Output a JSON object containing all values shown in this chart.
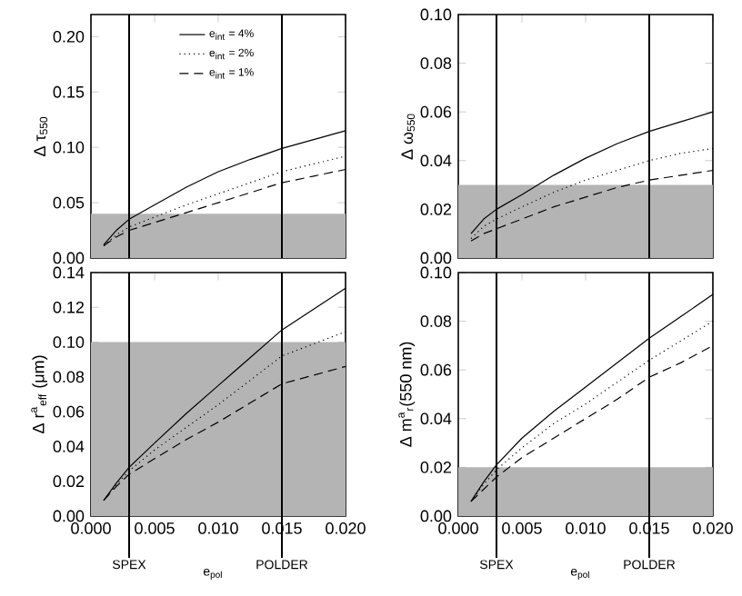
{
  "chart_data": [
    {
      "type": "line",
      "ylabel": "Δ τ$_{550}$",
      "xlim": [
        0,
        0.02
      ],
      "ylim": [
        0,
        0.22
      ],
      "tick_labels": "y",
      "legend": "top",
      "xticks": [
        {
          "value": 0,
          "label": null
        },
        {
          "value": 0.005,
          "label": null
        },
        {
          "value": 0.01,
          "label": null
        },
        {
          "value": 0.015,
          "label": null
        },
        {
          "value": 0.02,
          "label": null
        }
      ],
      "yticks": [
        {
          "value": 0,
          "label": "0.00"
        },
        {
          "value": 0.05,
          "label": "0.05"
        },
        {
          "value": 0.1,
          "label": "0.10"
        },
        {
          "value": 0.15,
          "label": "0.15"
        },
        {
          "value": 0.2,
          "label": "0.20"
        }
      ],
      "x": [
        0.001,
        0.002,
        0.003,
        0.005,
        0.0075,
        0.01,
        0.0125,
        0.015,
        0.0175,
        0.02
      ],
      "series": [
        {
          "name": "e$_{int}$ = 4%",
          "color": "#000000",
          "line_style": "solid",
          "values": [
            0.012,
            0.025,
            0.035,
            0.048,
            0.064,
            0.078,
            0.089,
            0.099,
            0.107,
            0.115
          ]
        },
        {
          "name": "e$_{int}$ = 2%",
          "color": "#000000",
          "line_style": "dotted",
          "values": [
            0.011,
            0.021,
            0.028,
            0.037,
            0.048,
            0.058,
            0.068,
            0.078,
            0.085,
            0.092
          ]
        },
        {
          "name": "e$_{int}$ = 1%",
          "color": "#000000",
          "line_style": "dashed",
          "values": [
            0.011,
            0.019,
            0.025,
            0.032,
            0.041,
            0.05,
            0.059,
            0.068,
            0.074,
            0.08
          ]
        }
      ],
      "ref_lines": [
        {
          "axis": "x",
          "value": 0.003,
          "color": "#000000"
        },
        {
          "axis": "x",
          "value": 0.015,
          "color": "#000000"
        }
      ],
      "bands": [
        {
          "axis": "y",
          "from": 0,
          "to": 0.04,
          "color": "#b4b4b4"
        }
      ]
    },
    {
      "type": "line",
      "ylabel": "Δ ω$_{550}$",
      "xlim": [
        0,
        0.02
      ],
      "ylim": [
        0,
        0.1
      ],
      "tick_labels": "y",
      "xticks": [
        {
          "value": 0,
          "label": null
        },
        {
          "value": 0.005,
          "label": null
        },
        {
          "value": 0.01,
          "label": null
        },
        {
          "value": 0.015,
          "label": null
        },
        {
          "value": 0.02,
          "label": null
        }
      ],
      "yticks": [
        {
          "value": 0,
          "label": "0.00"
        },
        {
          "value": 0.02,
          "label": "0.02"
        },
        {
          "value": 0.04,
          "label": "0.04"
        },
        {
          "value": 0.06,
          "label": "0.06"
        },
        {
          "value": 0.08,
          "label": "0.08"
        },
        {
          "value": 0.1,
          "label": "0.10"
        }
      ],
      "x": [
        0.001,
        0.002,
        0.003,
        0.005,
        0.0075,
        0.01,
        0.0125,
        0.015,
        0.0175,
        0.02
      ],
      "series": [
        {
          "color": "#000000",
          "line_style": "solid",
          "values": [
            0.01,
            0.016,
            0.02,
            0.026,
            0.034,
            0.041,
            0.047,
            0.052,
            0.056,
            0.06
          ]
        },
        {
          "color": "#000000",
          "line_style": "dotted",
          "values": [
            0.008,
            0.013,
            0.016,
            0.021,
            0.027,
            0.032,
            0.036,
            0.04,
            0.043,
            0.045
          ]
        },
        {
          "color": "#000000",
          "line_style": "dashed",
          "values": [
            0.007,
            0.01,
            0.012,
            0.016,
            0.021,
            0.025,
            0.029,
            0.032,
            0.034,
            0.036
          ]
        }
      ],
      "ref_lines": [
        {
          "axis": "x",
          "value": 0.003,
          "color": "#000000"
        },
        {
          "axis": "x",
          "value": 0.015,
          "color": "#000000"
        }
      ],
      "bands": [
        {
          "axis": "y",
          "from": 0,
          "to": 0.03,
          "color": "#b4b4b4"
        }
      ]
    },
    {
      "type": "line",
      "ylabel": "Δ r$^{a}$$_{eff}$ (μm)",
      "xlabel": "e$_{pol}$",
      "xlim": [
        0,
        0.02
      ],
      "ylim": [
        0,
        0.14
      ],
      "xticks": [
        {
          "value": 0,
          "label": "0.000"
        },
        {
          "value": 0.005,
          "label": "0.005"
        },
        {
          "value": 0.01,
          "label": "0.010"
        },
        {
          "value": 0.015,
          "label": "0.015"
        },
        {
          "value": 0.02,
          "label": "0.020"
        }
      ],
      "yticks": [
        {
          "value": 0,
          "label": "0.00"
        },
        {
          "value": 0.02,
          "label": "0.02"
        },
        {
          "value": 0.04,
          "label": "0.04"
        },
        {
          "value": 0.06,
          "label": "0.06"
        },
        {
          "value": 0.08,
          "label": "0.08"
        },
        {
          "value": 0.1,
          "label": "0.10"
        },
        {
          "value": 0.12,
          "label": "0.12"
        },
        {
          "value": 0.14,
          "label": "0.14"
        }
      ],
      "x": [
        0.001,
        0.002,
        0.003,
        0.005,
        0.0075,
        0.01,
        0.0125,
        0.015,
        0.0175,
        0.02
      ],
      "series": [
        {
          "color": "#000000",
          "line_style": "solid",
          "values": [
            0.009,
            0.019,
            0.028,
            0.042,
            0.059,
            0.075,
            0.091,
            0.107,
            0.119,
            0.131
          ]
        },
        {
          "color": "#000000",
          "line_style": "dotted",
          "values": [
            0.009,
            0.018,
            0.026,
            0.038,
            0.051,
            0.064,
            0.078,
            0.092,
            0.099,
            0.106
          ]
        },
        {
          "color": "#000000",
          "line_style": "dashed",
          "values": [
            0.009,
            0.017,
            0.024,
            0.033,
            0.044,
            0.054,
            0.065,
            0.076,
            0.081,
            0.086
          ]
        }
      ],
      "ref_lines": [
        {
          "axis": "x",
          "value": 0.003,
          "label": "SPEX",
          "color": "#000000"
        },
        {
          "axis": "x",
          "value": 0.015,
          "label": "POLDER",
          "color": "#000000"
        }
      ],
      "bands": [
        {
          "axis": "y",
          "from": 0,
          "to": 0.1,
          "color": "#b4b4b4"
        }
      ]
    },
    {
      "type": "line",
      "ylabel": "Δ m$^{a}$$_{r}$(550 nm)",
      "xlabel": "e$_{pol}$",
      "xlim": [
        0,
        0.02
      ],
      "ylim": [
        0,
        0.1
      ],
      "xticks": [
        {
          "value": 0,
          "label": "0.000"
        },
        {
          "value": 0.005,
          "label": "0.005"
        },
        {
          "value": 0.01,
          "label": "0.010"
        },
        {
          "value": 0.015,
          "label": "0.015"
        },
        {
          "value": 0.02,
          "label": "0.020"
        }
      ],
      "yticks": [
        {
          "value": 0,
          "label": "0.00"
        },
        {
          "value": 0.02,
          "label": "0.02"
        },
        {
          "value": 0.04,
          "label": "0.04"
        },
        {
          "value": 0.06,
          "label": "0.06"
        },
        {
          "value": 0.08,
          "label": "0.08"
        },
        {
          "value": 0.1,
          "label": "0.10"
        }
      ],
      "x": [
        0.001,
        0.002,
        0.003,
        0.005,
        0.0075,
        0.01,
        0.0125,
        0.015,
        0.0175,
        0.02
      ],
      "series": [
        {
          "color": "#000000",
          "line_style": "solid",
          "values": [
            0.006,
            0.014,
            0.021,
            0.032,
            0.043,
            0.053,
            0.063,
            0.073,
            0.082,
            0.091
          ]
        },
        {
          "color": "#000000",
          "line_style": "dotted",
          "values": [
            0.006,
            0.013,
            0.019,
            0.028,
            0.038,
            0.046,
            0.055,
            0.064,
            0.072,
            0.08
          ]
        },
        {
          "color": "#000000",
          "line_style": "dashed",
          "values": [
            0.006,
            0.011,
            0.016,
            0.024,
            0.032,
            0.04,
            0.048,
            0.057,
            0.063,
            0.07
          ]
        }
      ],
      "ref_lines": [
        {
          "axis": "x",
          "value": 0.003,
          "label": "SPEX",
          "color": "#000000"
        },
        {
          "axis": "x",
          "value": 0.015,
          "label": "POLDER",
          "color": "#000000"
        }
      ],
      "bands": [
        {
          "axis": "y",
          "from": 0,
          "to": 0.02,
          "color": "#b4b4b4"
        }
      ]
    }
  ]
}
